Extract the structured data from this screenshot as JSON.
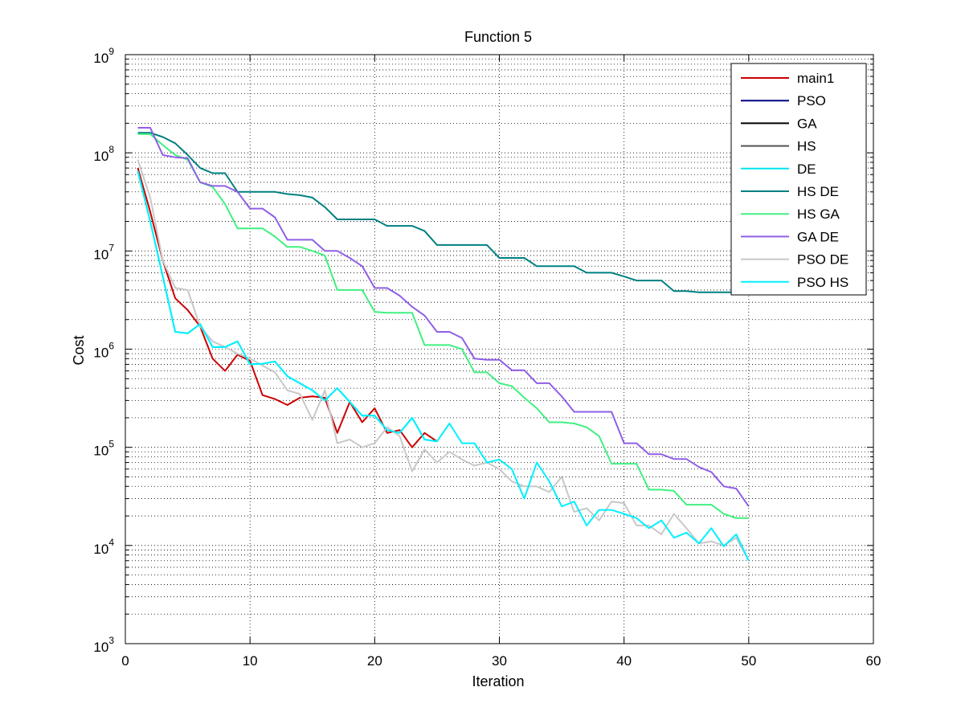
{
  "chart_data": {
    "type": "line",
    "title": "Function 5",
    "xlabel": "Iteration",
    "ylabel": "Cost",
    "xlim": [
      0,
      60
    ],
    "ylim": [
      1000,
      1000000000
    ],
    "yscale": "log",
    "grid": true,
    "legend_position": "top-right",
    "x_ticks": [
      "0",
      "10",
      "20",
      "30",
      "40",
      "50",
      "60"
    ],
    "y_ticks": [
      {
        "base": "10",
        "exp": "3"
      },
      {
        "base": "10",
        "exp": "4"
      },
      {
        "base": "10",
        "exp": "5"
      },
      {
        "base": "10",
        "exp": "6"
      },
      {
        "base": "10",
        "exp": "7"
      },
      {
        "base": "10",
        "exp": "8"
      },
      {
        "base": "10",
        "exp": "9"
      }
    ],
    "series": [
      {
        "name": "main1",
        "color": "#cc0000",
        "x": [
          1,
          2,
          3,
          4,
          5,
          6,
          7,
          8,
          9,
          10,
          11,
          12,
          13,
          14,
          15,
          16,
          17,
          18,
          19,
          20,
          21,
          22,
          23,
          24,
          25
        ],
        "values": [
          70000000,
          25000000,
          8000000,
          3300000,
          2500000,
          1700000,
          800000,
          600000,
          880000,
          760000,
          340000,
          310000,
          270000,
          320000,
          330000,
          320000,
          140000,
          290000,
          180000,
          250000,
          140000,
          150000,
          100000,
          140000,
          115000
        ]
      },
      {
        "name": "PSO",
        "color": "#000080",
        "x": [],
        "values": []
      },
      {
        "name": "GA",
        "color": "#000000",
        "x": [],
        "values": []
      },
      {
        "name": "HS",
        "color": "#555555",
        "x": [],
        "values": []
      },
      {
        "name": "DE",
        "color": "#00e5ee",
        "x": [
          1,
          2,
          3,
          4,
          5,
          6,
          7,
          8,
          9,
          10,
          11,
          12,
          13,
          14,
          15,
          16,
          17,
          18,
          19,
          20,
          21,
          22,
          23,
          24,
          25
        ],
        "values": [
          65000000,
          20000000,
          5500000,
          1500000,
          1450000,
          1800000,
          1050000,
          1050000,
          1200000,
          700000,
          710000,
          750000,
          530000,
          450000,
          380000,
          300000,
          400000,
          290000,
          210000,
          210000,
          150000,
          140000,
          200000,
          120000,
          115000
        ]
      },
      {
        "name": "HS DE",
        "color": "#008080",
        "x": [
          1,
          2,
          3,
          4,
          5,
          6,
          7,
          8,
          9,
          10,
          11,
          12,
          13,
          14,
          15,
          16,
          17,
          18,
          19,
          20,
          21,
          22,
          23,
          24,
          25,
          26,
          27,
          28,
          29,
          30,
          31,
          32,
          33,
          34,
          35,
          36,
          37,
          38,
          39,
          40,
          41,
          42,
          43,
          44,
          45,
          46,
          47,
          48,
          49,
          50
        ],
        "values": [
          160000000,
          160000000,
          145000000,
          125000000,
          95000000,
          70000000,
          62000000,
          62000000,
          40000000,
          40000000,
          40000000,
          40000000,
          38000000,
          37000000,
          35000000,
          28000000,
          21000000,
          21000000,
          21000000,
          21000000,
          18000000,
          18000000,
          18000000,
          16000000,
          11500000,
          11500000,
          11500000,
          11500000,
          11500000,
          8500000,
          8500000,
          8500000,
          7000000,
          7000000,
          7000000,
          7000000,
          6000000,
          6000000,
          6000000,
          5500000,
          5000000,
          5000000,
          5000000,
          3900000,
          3900000,
          3800000,
          3800000,
          3800000,
          3800000,
          3800000
        ]
      },
      {
        "name": "HS GA",
        "color": "#40f080",
        "x": [
          1,
          2,
          3,
          4,
          5,
          6,
          7,
          8,
          9,
          10,
          11,
          12,
          13,
          14,
          15,
          16,
          17,
          18,
          19,
          20,
          21,
          22,
          23,
          24,
          25,
          26,
          27,
          28,
          29,
          30,
          31,
          32,
          33,
          34,
          35,
          36,
          37,
          38,
          39,
          40,
          41,
          42,
          43,
          44,
          45,
          46,
          47,
          48,
          49,
          50
        ],
        "values": [
          155000000,
          155000000,
          120000000,
          95000000,
          85000000,
          50000000,
          45000000,
          30000000,
          17000000,
          17000000,
          17000000,
          14000000,
          11000000,
          11000000,
          10000000,
          9000000,
          4000000,
          4000000,
          4000000,
          2400000,
          2350000,
          2350000,
          2350000,
          1100000,
          1100000,
          1100000,
          1000000,
          580000,
          580000,
          450000,
          420000,
          320000,
          250000,
          180000,
          180000,
          175000,
          160000,
          130000,
          68000,
          68000,
          68000,
          37000,
          37000,
          36000,
          26000,
          26000,
          26000,
          21000,
          19000,
          19000
        ]
      },
      {
        "name": "GA DE",
        "color": "#8f5fe6",
        "x": [
          1,
          2,
          3,
          4,
          5,
          6,
          7,
          8,
          9,
          10,
          11,
          12,
          13,
          14,
          15,
          16,
          17,
          18,
          19,
          20,
          21,
          22,
          23,
          24,
          25,
          26,
          27,
          28,
          29,
          30,
          31,
          32,
          33,
          34,
          35,
          36,
          37,
          38,
          39,
          40,
          41,
          42,
          43,
          44,
          45,
          46,
          47,
          48,
          49,
          50
        ],
        "values": [
          180000000,
          180000000,
          95000000,
          90000000,
          88000000,
          50000000,
          46000000,
          46000000,
          40000000,
          27000000,
          27000000,
          22000000,
          13000000,
          13000000,
          13000000,
          10000000,
          10000000,
          8500000,
          7000000,
          4200000,
          4200000,
          3500000,
          2700000,
          2200000,
          1500000,
          1500000,
          1300000,
          800000,
          780000,
          780000,
          610000,
          610000,
          450000,
          450000,
          330000,
          230000,
          230000,
          230000,
          230000,
          110000,
          110000,
          85000,
          85000,
          76000,
          76000,
          63000,
          56000,
          40000,
          38000,
          25000
        ]
      },
      {
        "name": "PSO DE",
        "color": "#c8c8c8",
        "x": [
          1,
          2,
          3,
          4,
          5,
          6,
          7,
          8,
          9,
          10,
          11,
          12,
          13,
          14,
          15,
          16,
          17,
          18,
          19,
          20,
          21,
          22,
          23,
          24,
          25,
          26,
          27,
          28,
          29,
          30,
          31,
          32,
          33,
          34,
          35,
          36,
          37,
          38,
          39,
          40,
          41,
          42,
          43,
          44,
          45,
          46,
          47,
          48,
          49,
          50
        ],
        "values": [
          85000000,
          35000000,
          8000000,
          4200000,
          4000000,
          1700000,
          1200000,
          1050000,
          900000,
          800000,
          680000,
          580000,
          380000,
          350000,
          190000,
          380000,
          110000,
          120000,
          100000,
          110000,
          160000,
          130000,
          57000,
          95000,
          70000,
          90000,
          75000,
          65000,
          70000,
          60000,
          45000,
          40000,
          40000,
          35000,
          50000,
          22000,
          24000,
          18000,
          28000,
          27000,
          16000,
          16000,
          13000,
          21000,
          15000,
          10500,
          11000,
          10000,
          12000,
          7000
        ]
      },
      {
        "name": "PSO HS",
        "color": "#00f0ff",
        "x": [
          1,
          2,
          3,
          4,
          5,
          6,
          7,
          8,
          9,
          10,
          11,
          12,
          13,
          14,
          15,
          16,
          17,
          18,
          19,
          20,
          21,
          22,
          23,
          24,
          25,
          26,
          27,
          28,
          29,
          30,
          31,
          32,
          33,
          34,
          35,
          36,
          37,
          38,
          39,
          40,
          41,
          42,
          43,
          44,
          45,
          46,
          47,
          48,
          49,
          50
        ],
        "values": [
          65000000,
          20000000,
          5500000,
          1500000,
          1450000,
          1800000,
          1050000,
          1050000,
          1200000,
          700000,
          710000,
          750000,
          530000,
          450000,
          380000,
          300000,
          400000,
          290000,
          210000,
          210000,
          150000,
          140000,
          200000,
          120000,
          115000,
          175000,
          110000,
          110000,
          70000,
          75000,
          60000,
          30000,
          70000,
          45000,
          25000,
          28000,
          16000,
          23000,
          23000,
          21000,
          19000,
          15000,
          18000,
          12000,
          13500,
          10500,
          15000,
          9800,
          13000,
          7000
        ]
      }
    ]
  }
}
